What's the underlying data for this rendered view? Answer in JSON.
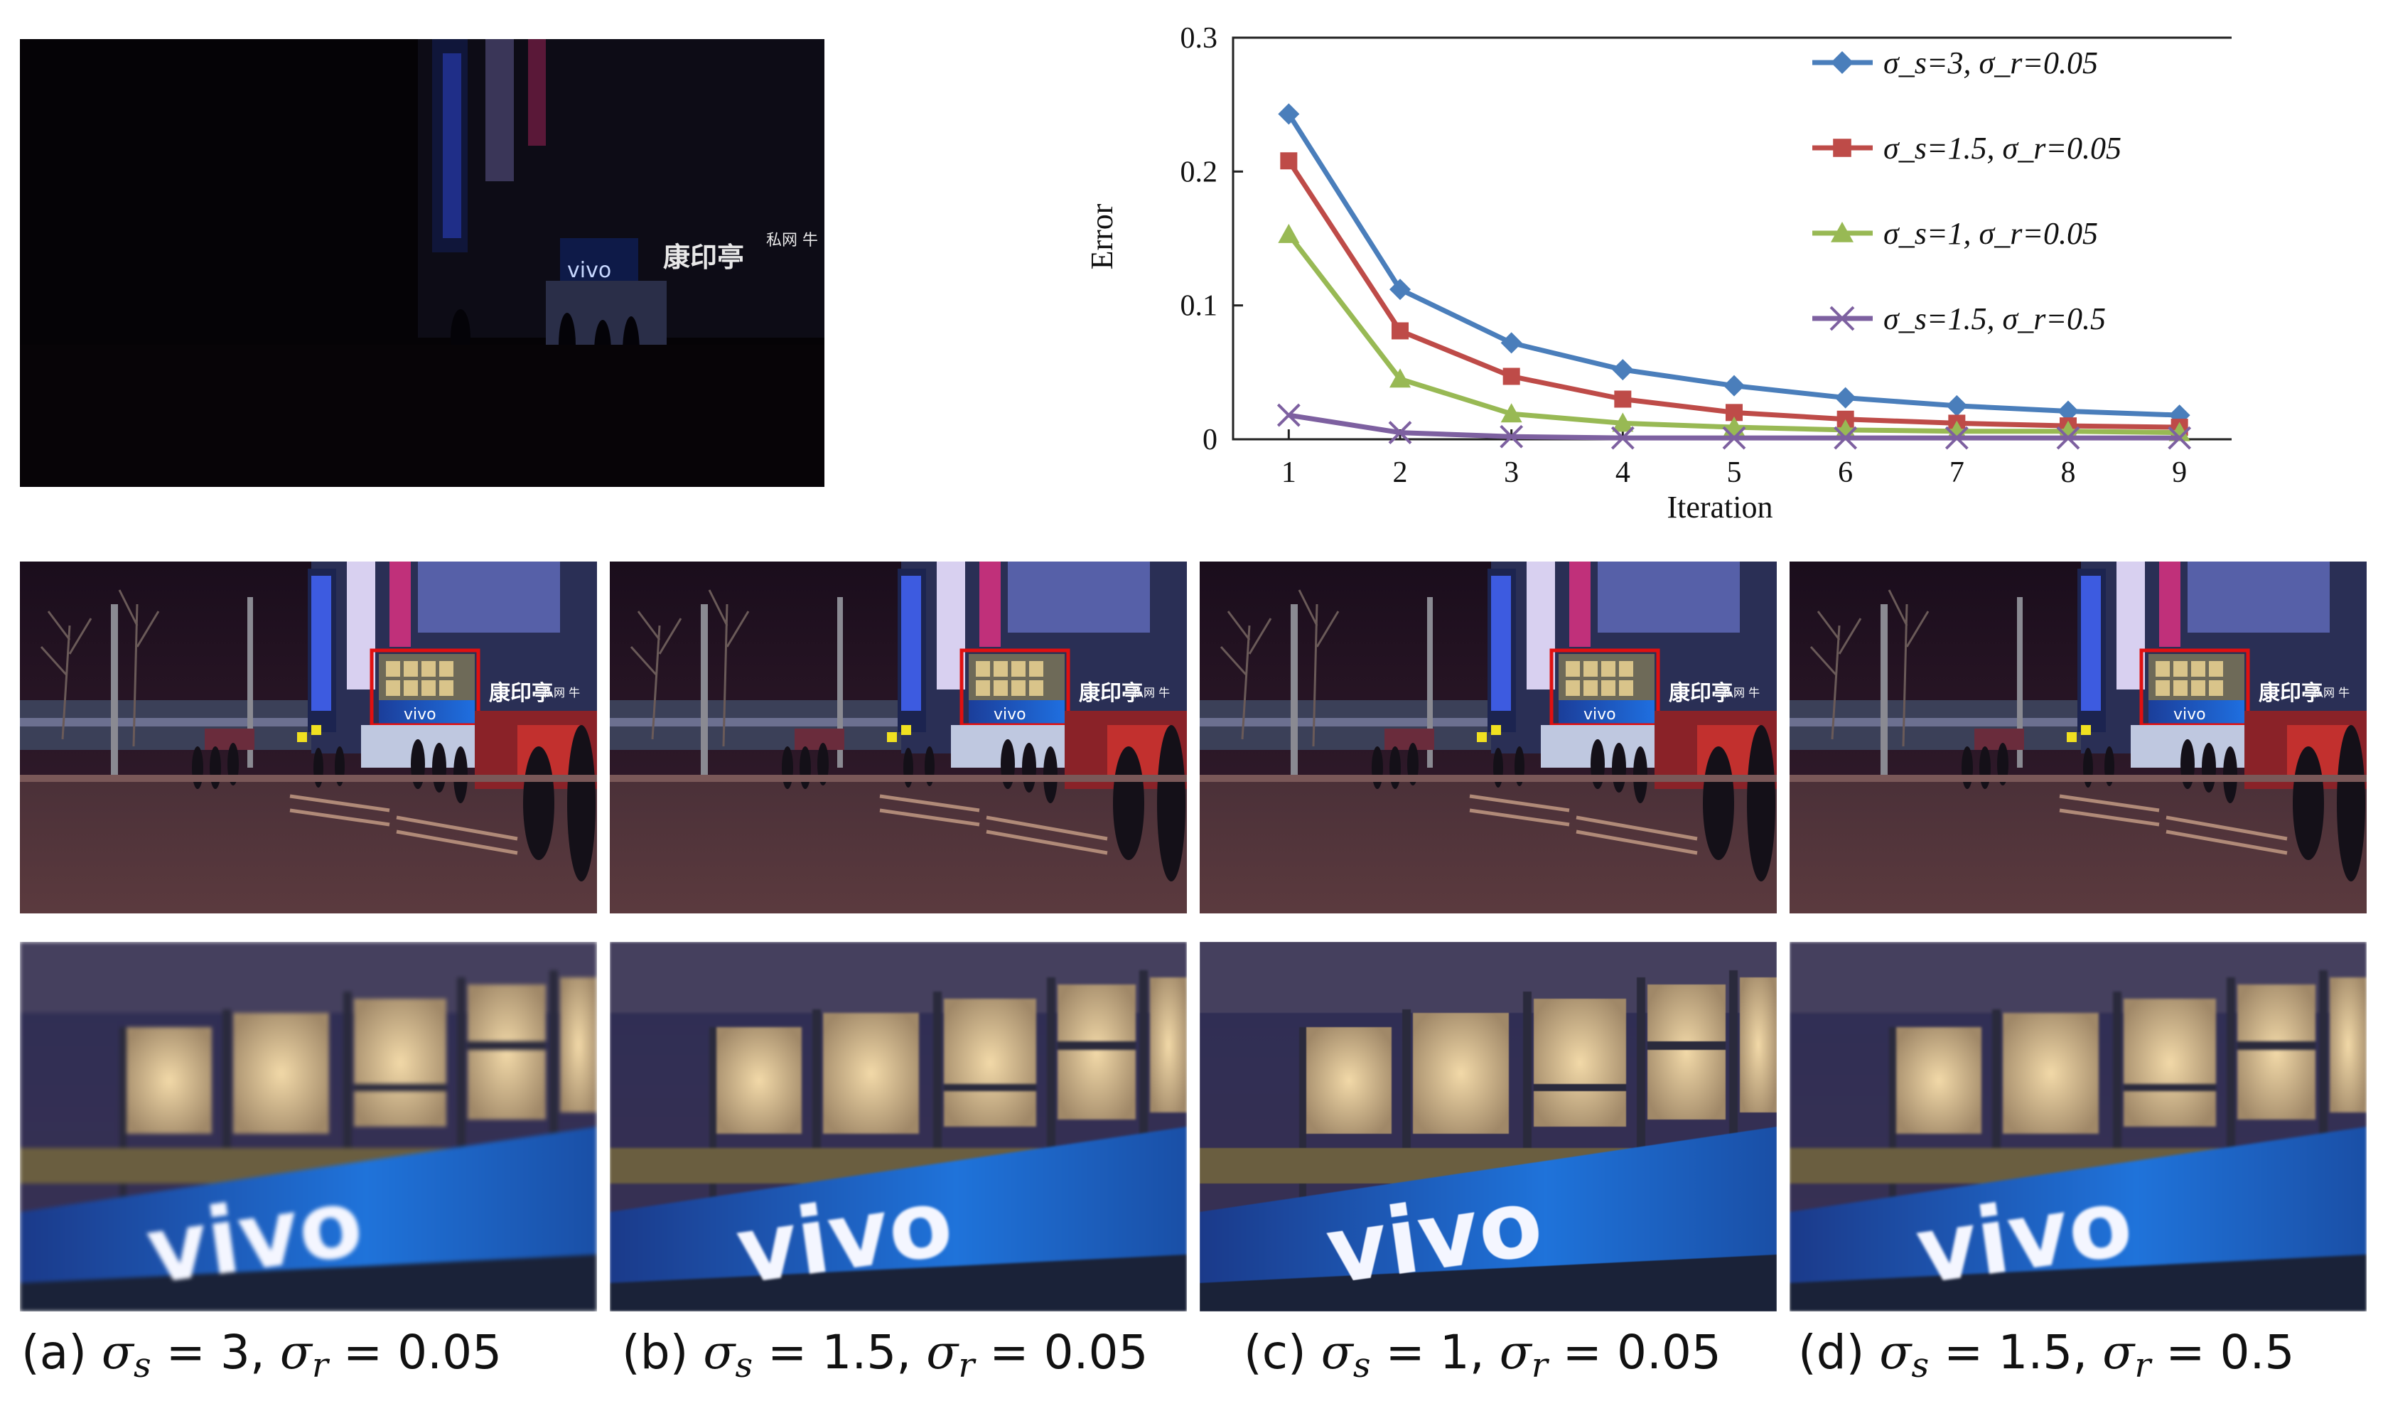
{
  "figure": {
    "captions": [
      {
        "label": "(a) ",
        "sub1": "s",
        "mid": " = 3, ",
        "sub2": "r",
        "end": " = 0.05"
      },
      {
        "label": "(b) ",
        "sub1": "s",
        "mid": " = 1.5, ",
        "sub2": "r",
        "end": " = 0.05"
      },
      {
        "label": "(c) ",
        "sub1": "s",
        "mid": " = 1, ",
        "sub2": "r",
        "end": " = 0.05"
      },
      {
        "label": "(d) ",
        "sub1": "s",
        "mid": " = 1.5, ",
        "sub2": "r",
        "end": " = 0.5"
      }
    ],
    "sigma_symbol": "σ",
    "scene_text": {
      "sign_brand": "vivo",
      "sign_chinese": "康印亭",
      "sign_chinese_small": "私网 牛"
    }
  },
  "chart_data": {
    "type": "line",
    "title": "",
    "xlabel": "Iteration",
    "ylabel": "Error",
    "x": [
      1,
      2,
      3,
      4,
      5,
      6,
      7,
      8,
      9
    ],
    "xlim": [
      0.5,
      9.5
    ],
    "ylim": [
      0,
      0.3
    ],
    "yticks": [
      "0",
      "0.1",
      "0.2",
      "0.3"
    ],
    "grid": false,
    "legend_position": "top-right",
    "series": [
      {
        "name": "σ_s=3, σ_r=0.05",
        "color": "#4a7ebb",
        "marker": "diamond",
        "values": [
          0.243,
          0.112,
          0.072,
          0.052,
          0.04,
          0.031,
          0.025,
          0.021,
          0.018
        ]
      },
      {
        "name": "σ_s=1.5, σ_r=0.05",
        "color": "#be4b48",
        "marker": "square",
        "values": [
          0.208,
          0.081,
          0.047,
          0.03,
          0.02,
          0.015,
          0.012,
          0.01,
          0.009
        ]
      },
      {
        "name": "σ_s=1, σ_r=0.05",
        "color": "#98b954",
        "marker": "triangle",
        "values": [
          0.153,
          0.045,
          0.019,
          0.012,
          0.009,
          0.007,
          0.006,
          0.006,
          0.005
        ]
      },
      {
        "name": "σ_s=1.5, σ_r=0.5",
        "color": "#7d60a0",
        "marker": "x",
        "values": [
          0.018,
          0.005,
          0.002,
          0.001,
          0.001,
          0.001,
          0.001,
          0.001,
          0.001
        ]
      }
    ]
  }
}
